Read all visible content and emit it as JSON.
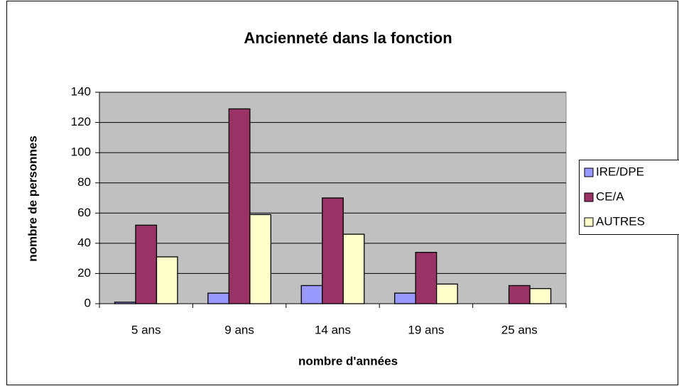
{
  "chart_data": {
    "type": "bar",
    "title": "Ancienneté dans la fonction",
    "x_label": "nombre d'années",
    "y_label": "nombre de personnes",
    "categories": [
      "5 ans",
      "9 ans",
      "14 ans",
      "19 ans",
      "25 ans"
    ],
    "series": [
      {
        "name": "IRE/DPE",
        "color": "#9999ff",
        "values": [
          1,
          7,
          12,
          7,
          0
        ]
      },
      {
        "name": "CE/A",
        "color": "#993366",
        "values": [
          52,
          129,
          70,
          34,
          12
        ]
      },
      {
        "name": "AUTRES",
        "color": "#ffffcc",
        "values": [
          31,
          59,
          46,
          13,
          10
        ]
      }
    ],
    "ylim": [
      0,
      140
    ],
    "yticks": [
      0,
      20,
      40,
      60,
      80,
      100,
      120,
      140
    ],
    "grid": true,
    "legend": "right"
  }
}
